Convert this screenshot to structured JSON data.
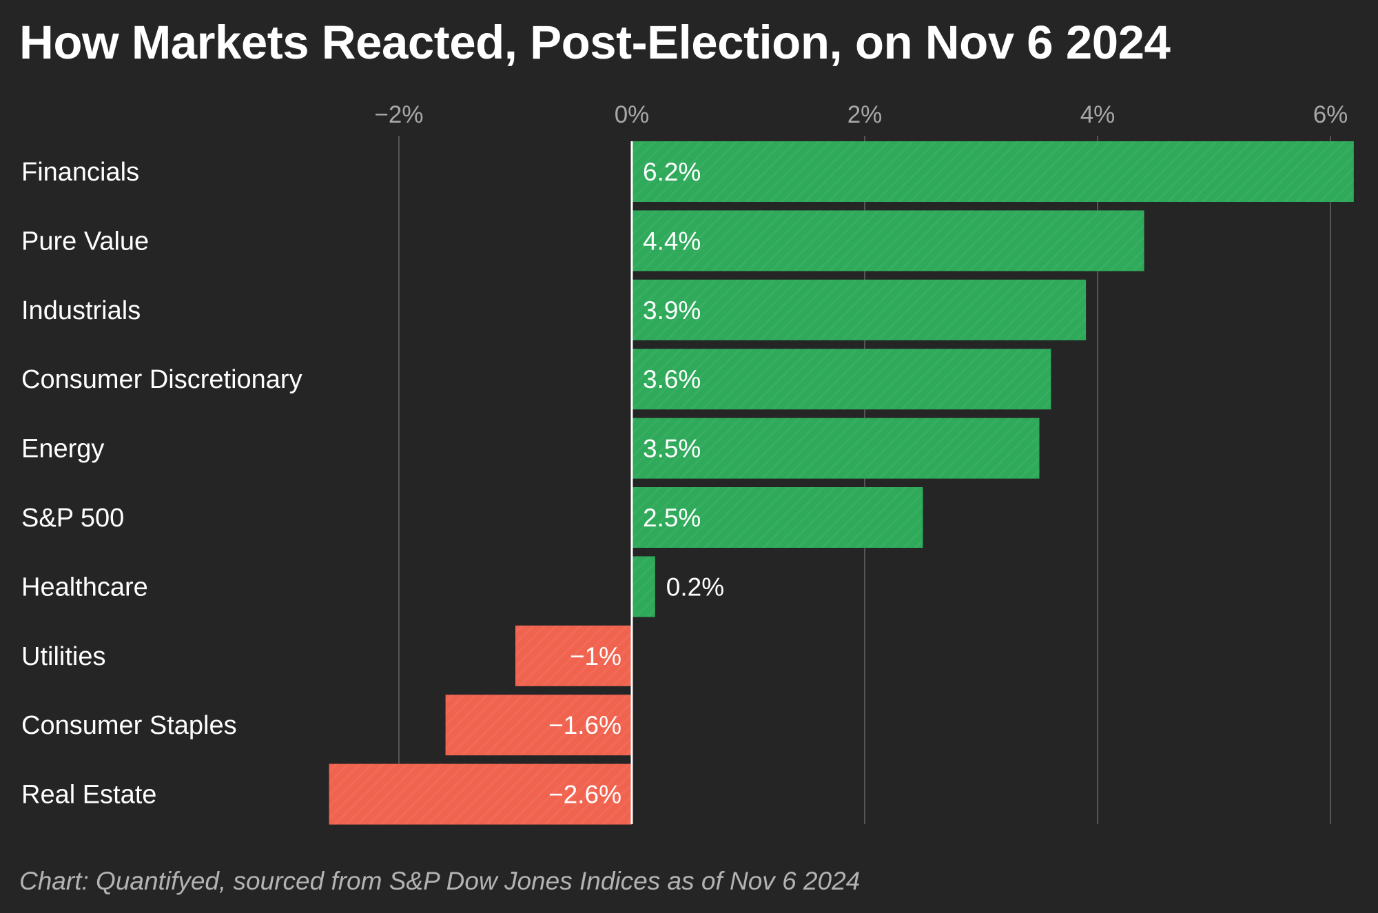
{
  "title": "How Markets Reacted, Post-Election, on Nov 6 2024",
  "footnote": "Chart: Quantifyed, sourced from S&P Dow Jones Indices as of Nov 6 2024",
  "colors": {
    "background": "#252525",
    "positive": "#2eaa5a",
    "negative": "#f0634f",
    "gridline": "#555555",
    "tick_text": "#a8a8a8",
    "zero_line": "#ffffff"
  },
  "chart_data": {
    "type": "bar",
    "orientation": "horizontal",
    "title": "How Markets Reacted, Post-Election, on Nov 6 2024",
    "xlabel": "",
    "ylabel": "",
    "xlim": [
      -2.6,
      6.2
    ],
    "ticks": [
      {
        "value": -2,
        "label": "−2%"
      },
      {
        "value": 0,
        "label": "0%"
      },
      {
        "value": 2,
        "label": "2%"
      },
      {
        "value": 4,
        "label": "4%"
      },
      {
        "value": 6,
        "label": "6%"
      }
    ],
    "grid": true,
    "categories": [
      "Financials",
      "Pure Value",
      "Industrials",
      "Consumer Discretionary",
      "Energy",
      "S&P 500",
      "Healthcare",
      "Utilities",
      "Consumer Staples",
      "Real Estate"
    ],
    "values": [
      6.2,
      4.4,
      3.9,
      3.6,
      3.5,
      2.5,
      0.2,
      -1,
      -1.6,
      -2.6
    ],
    "value_labels": [
      "6.2%",
      "4.4%",
      "3.9%",
      "3.6%",
      "3.5%",
      "2.5%",
      "0.2%",
      "−1%",
      "−1.6%",
      "−2.6%"
    ]
  }
}
